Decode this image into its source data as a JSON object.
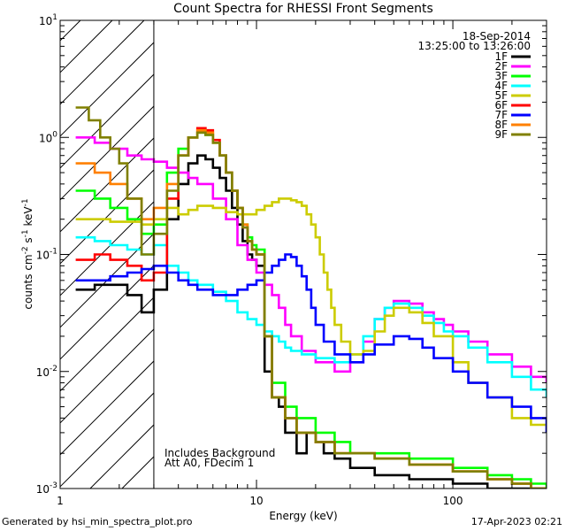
{
  "chart_data": {
    "type": "line",
    "title": "Count Spectra for RHESSI Front Segments",
    "xlabel": "Energy (keV)",
    "ylabel_parts": [
      "counts cm",
      "-2",
      " s",
      "-1",
      " keV",
      "-1"
    ],
    "xscale": "log",
    "yscale": "log",
    "xlim": [
      1.0,
      300.0
    ],
    "ylim": [
      0.001,
      10.0
    ],
    "x_tick_labels": [
      {
        "value": 1,
        "label": "1"
      },
      {
        "value": 10,
        "label": "10"
      },
      {
        "value": 100,
        "label": "100"
      }
    ],
    "y_tick_labels": [
      {
        "value": 0.001,
        "base": "10",
        "exp": "-3"
      },
      {
        "value": 0.01,
        "base": "10",
        "exp": "-2"
      },
      {
        "value": 0.1,
        "base": "10",
        "exp": "-1"
      },
      {
        "value": 1,
        "base": "10",
        "exp": "0"
      },
      {
        "value": 10,
        "base": "10",
        "exp": "1"
      }
    ],
    "hatched_region_x": [
      1.0,
      3.0
    ],
    "date": "18-Sep-2014",
    "time_range": "13:25:00 to 13:26:00",
    "annotation_lines": [
      "Includes Background",
      "Att A0, FDecim 1"
    ],
    "legend_position": "top-right",
    "series": [
      {
        "name": "1F",
        "color": "#000000",
        "x": [
          1.2,
          1.5,
          1.8,
          2.2,
          2.6,
          3.0,
          3.5,
          4.0,
          4.5,
          5.0,
          5.5,
          6.0,
          6.5,
          7.0,
          7.5,
          8.0,
          8.5,
          9.0,
          9.5,
          10.0,
          11.0,
          12.0,
          13.0,
          14.0,
          15.0,
          16.0,
          18.0,
          20.0,
          22.0,
          25.0,
          30.0,
          40.0,
          60.0,
          100.0,
          150.0,
          200.0,
          250.0,
          300.0
        ],
        "y": [
          0.05,
          0.055,
          0.055,
          0.045,
          0.032,
          0.05,
          0.2,
          0.4,
          0.6,
          0.7,
          0.65,
          0.55,
          0.45,
          0.35,
          0.25,
          0.18,
          0.13,
          0.1,
          0.09,
          0.08,
          0.01,
          0.006,
          0.005,
          0.003,
          0.003,
          0.002,
          0.003,
          0.0025,
          0.002,
          0.0018,
          0.0015,
          0.0013,
          0.0012,
          0.0011,
          0.001,
          0.001,
          0.001,
          0.001
        ]
      },
      {
        "name": "2F",
        "color": "#ff00ff",
        "x": [
          1.2,
          1.5,
          1.8,
          2.2,
          2.6,
          3.0,
          3.5,
          4.0,
          4.5,
          5.0,
          6.0,
          7.0,
          8.0,
          9.0,
          10.0,
          11.0,
          12.0,
          13.0,
          14.0,
          15.0,
          17.0,
          20.0,
          25.0,
          30.0,
          35.0,
          40.0,
          45.0,
          50.0,
          60.0,
          70.0,
          80.0,
          90.0,
          100.0,
          120.0,
          150.0,
          200.0,
          250.0,
          300.0
        ],
        "y": [
          1.0,
          0.9,
          0.8,
          0.7,
          0.65,
          0.62,
          0.55,
          0.5,
          0.45,
          0.4,
          0.3,
          0.2,
          0.12,
          0.09,
          0.07,
          0.055,
          0.045,
          0.035,
          0.025,
          0.02,
          0.015,
          0.012,
          0.01,
          0.012,
          0.018,
          0.028,
          0.035,
          0.04,
          0.038,
          0.032,
          0.028,
          0.025,
          0.022,
          0.018,
          0.014,
          0.011,
          0.009,
          0.008
        ]
      },
      {
        "name": "3F",
        "color": "#00ff00",
        "x": [
          1.2,
          1.5,
          1.8,
          2.2,
          2.6,
          3.0,
          3.5,
          4.0,
          4.5,
          5.0,
          5.5,
          6.0,
          6.5,
          7.0,
          7.5,
          8.0,
          8.5,
          9.0,
          9.5,
          10.0,
          11.0,
          12.0,
          14.0,
          16.0,
          20.0,
          25.0,
          30.0,
          40.0,
          60.0,
          100.0,
          150.0,
          200.0,
          250.0,
          300.0
        ],
        "y": [
          0.35,
          0.3,
          0.25,
          0.2,
          0.15,
          0.18,
          0.5,
          0.8,
          1.0,
          1.1,
          1.05,
          0.9,
          0.7,
          0.5,
          0.35,
          0.25,
          0.18,
          0.14,
          0.12,
          0.11,
          0.02,
          0.008,
          0.005,
          0.004,
          0.003,
          0.0025,
          0.002,
          0.002,
          0.0018,
          0.0015,
          0.0013,
          0.0012,
          0.0011,
          0.001
        ]
      },
      {
        "name": "4F",
        "color": "#00ffff",
        "x": [
          1.2,
          1.5,
          1.8,
          2.2,
          2.6,
          3.0,
          3.5,
          4.0,
          4.5,
          5.0,
          6.0,
          7.0,
          8.0,
          9.0,
          10.0,
          11.0,
          12.0,
          13.0,
          14.0,
          15.0,
          17.0,
          20.0,
          25.0,
          30.0,
          35.0,
          40.0,
          45.0,
          50.0,
          60.0,
          70.0,
          80.0,
          90.0,
          100.0,
          120.0,
          150.0,
          200.0,
          250.0,
          300.0
        ],
        "y": [
          0.14,
          0.13,
          0.12,
          0.11,
          0.1,
          0.12,
          0.08,
          0.07,
          0.06,
          0.055,
          0.048,
          0.04,
          0.032,
          0.028,
          0.025,
          0.022,
          0.02,
          0.018,
          0.016,
          0.015,
          0.014,
          0.013,
          0.012,
          0.014,
          0.02,
          0.028,
          0.035,
          0.038,
          0.035,
          0.03,
          0.026,
          0.022,
          0.02,
          0.016,
          0.012,
          0.009,
          0.007,
          0.006
        ]
      },
      {
        "name": "5F",
        "color": "#cccc00",
        "x": [
          1.2,
          1.5,
          1.8,
          2.2,
          2.6,
          3.0,
          3.5,
          4.0,
          4.5,
          5.0,
          6.0,
          7.0,
          8.0,
          9.0,
          10.0,
          11.0,
          12.0,
          13.0,
          14.0,
          15.0,
          16.0,
          17.0,
          18.0,
          19.0,
          20.0,
          21.0,
          22.0,
          23.0,
          24.0,
          25.0,
          27.0,
          30.0,
          35.0,
          40.0,
          45.0,
          50.0,
          60.0,
          70.0,
          80.0,
          100.0,
          120.0,
          150.0,
          200.0,
          250.0,
          300.0
        ],
        "y": [
          0.2,
          0.2,
          0.19,
          0.19,
          0.18,
          0.2,
          0.25,
          0.22,
          0.24,
          0.26,
          0.25,
          0.23,
          0.22,
          0.22,
          0.24,
          0.26,
          0.28,
          0.3,
          0.3,
          0.29,
          0.28,
          0.26,
          0.22,
          0.18,
          0.14,
          0.1,
          0.07,
          0.05,
          0.035,
          0.025,
          0.018,
          0.014,
          0.015,
          0.022,
          0.03,
          0.035,
          0.032,
          0.026,
          0.02,
          0.012,
          0.008,
          0.006,
          0.004,
          0.0035,
          0.003
        ]
      },
      {
        "name": "6F",
        "color": "#ff0000",
        "x": [
          1.2,
          1.5,
          1.8,
          2.2,
          2.6,
          3.0,
          3.5,
          4.0,
          4.5,
          5.0,
          5.5,
          6.0,
          6.5,
          7.0,
          7.5,
          8.0,
          8.5,
          9.0,
          9.5,
          10.0,
          11.0,
          12.0,
          14.0,
          16.0,
          20.0,
          25.0,
          30.0,
          40.0,
          60.0,
          100.0,
          150.0,
          200.0,
          250.0,
          300.0
        ],
        "y": [
          0.09,
          0.1,
          0.09,
          0.08,
          0.06,
          0.07,
          0.3,
          0.7,
          1.0,
          1.2,
          1.15,
          0.95,
          0.7,
          0.5,
          0.35,
          0.25,
          0.17,
          0.13,
          0.11,
          0.1,
          0.02,
          0.006,
          0.004,
          0.003,
          0.0025,
          0.002,
          0.002,
          0.0018,
          0.0016,
          0.0014,
          0.0012,
          0.0011,
          0.001,
          0.001
        ]
      },
      {
        "name": "7F",
        "color": "#0000ff",
        "x": [
          1.2,
          1.5,
          1.8,
          2.2,
          2.6,
          3.0,
          3.5,
          4.0,
          4.5,
          5.0,
          6.0,
          7.0,
          8.0,
          9.0,
          10.0,
          11.0,
          12.0,
          13.0,
          14.0,
          15.0,
          16.0,
          17.0,
          18.0,
          19.0,
          20.0,
          22.0,
          25.0,
          30.0,
          35.0,
          40.0,
          50.0,
          60.0,
          70.0,
          80.0,
          100.0,
          120.0,
          150.0,
          200.0,
          250.0,
          300.0
        ],
        "y": [
          0.06,
          0.06,
          0.065,
          0.07,
          0.075,
          0.08,
          0.07,
          0.06,
          0.055,
          0.05,
          0.045,
          0.045,
          0.05,
          0.055,
          0.06,
          0.07,
          0.08,
          0.09,
          0.1,
          0.095,
          0.08,
          0.065,
          0.05,
          0.035,
          0.025,
          0.018,
          0.014,
          0.012,
          0.014,
          0.017,
          0.02,
          0.019,
          0.016,
          0.013,
          0.01,
          0.008,
          0.006,
          0.005,
          0.004,
          0.003
        ]
      },
      {
        "name": "8F",
        "color": "#ff8000",
        "x": [
          1.2,
          1.5,
          1.8,
          2.2,
          2.6,
          3.0,
          3.5,
          4.0,
          4.5,
          5.0,
          5.5,
          6.0,
          6.5,
          7.0,
          7.5,
          8.0,
          8.5,
          9.0,
          9.5,
          10.0,
          11.0,
          12.0,
          14.0,
          16.0,
          20.0,
          25.0,
          30.0,
          40.0,
          60.0,
          100.0,
          150.0,
          200.0,
          250.0,
          300.0
        ],
        "y": [
          0.6,
          0.5,
          0.4,
          0.3,
          0.2,
          0.25,
          0.4,
          0.7,
          1.0,
          1.15,
          1.1,
          0.9,
          0.7,
          0.5,
          0.35,
          0.25,
          0.18,
          0.13,
          0.11,
          0.1,
          0.02,
          0.006,
          0.004,
          0.003,
          0.0025,
          0.002,
          0.002,
          0.0018,
          0.0016,
          0.0014,
          0.0012,
          0.0011,
          0.001,
          0.001
        ]
      },
      {
        "name": "9F",
        "color": "#808000",
        "x": [
          1.2,
          1.4,
          1.6,
          1.8,
          2.0,
          2.2,
          2.6,
          3.0,
          3.5,
          4.0,
          4.5,
          5.0,
          5.5,
          6.0,
          6.5,
          7.0,
          7.5,
          8.0,
          8.5,
          9.0,
          9.5,
          10.0,
          11.0,
          12.0,
          14.0,
          16.0,
          20.0,
          25.0,
          30.0,
          40.0,
          60.0,
          100.0,
          150.0,
          200.0,
          250.0,
          300.0
        ],
        "y": [
          1.8,
          1.4,
          1.0,
          0.8,
          0.6,
          0.3,
          0.1,
          0.15,
          0.35,
          0.7,
          1.0,
          1.1,
          1.05,
          0.9,
          0.7,
          0.5,
          0.35,
          0.25,
          0.17,
          0.13,
          0.11,
          0.1,
          0.02,
          0.006,
          0.004,
          0.003,
          0.0025,
          0.002,
          0.002,
          0.0018,
          0.0016,
          0.0014,
          0.0012,
          0.0011,
          0.001,
          0.001
        ]
      }
    ]
  },
  "footer": {
    "generated_by": "Generated by hsi_min_spectra_plot.pro",
    "timestamp": "17-Apr-2023 02:21"
  }
}
